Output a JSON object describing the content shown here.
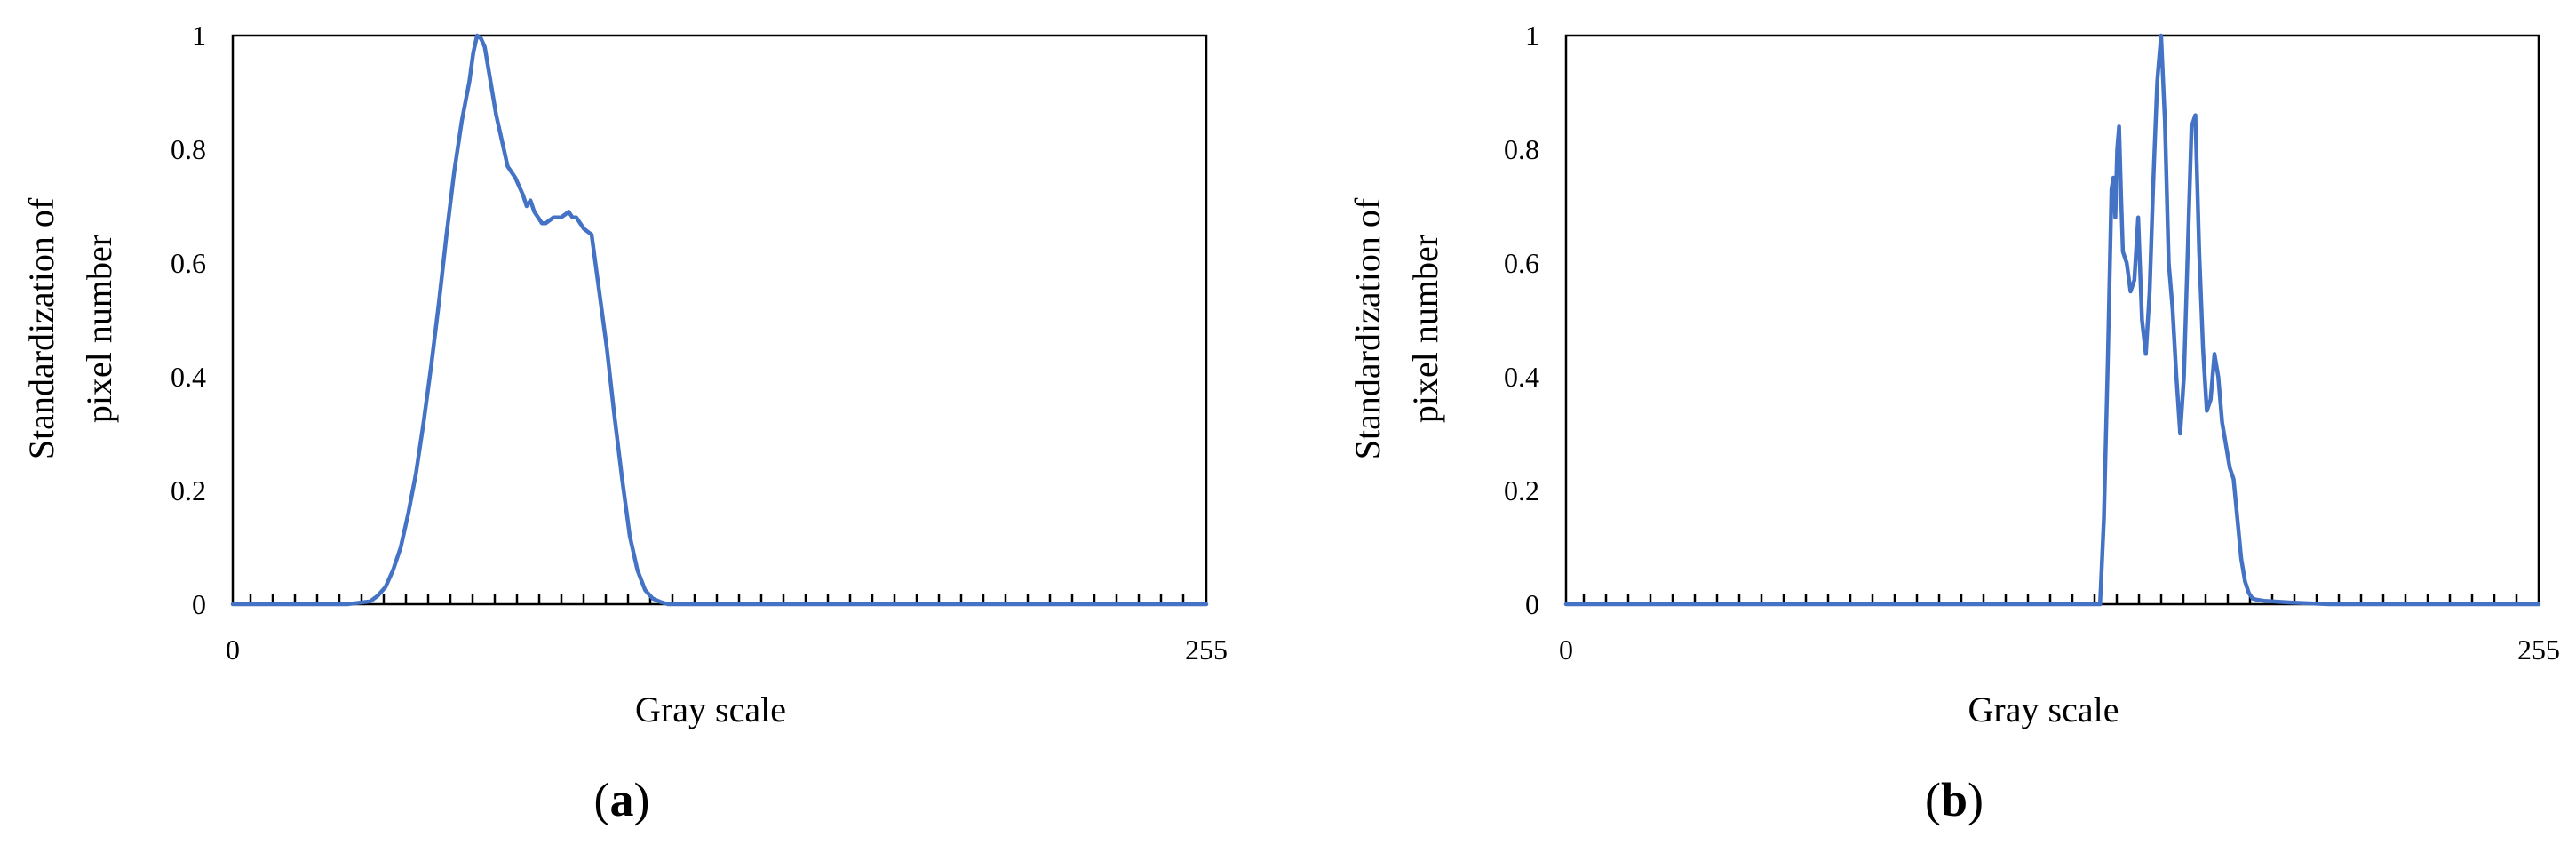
{
  "chart_data": [
    {
      "type": "line",
      "panel_label": "a",
      "xlabel": "Gray scale",
      "ylabel": [
        "Standardization of",
        "pixel number"
      ],
      "xlim": [
        0,
        255
      ],
      "ylim": [
        0,
        1
      ],
      "x_ticks": [
        "0",
        "255"
      ],
      "y_ticks": [
        "0",
        "0.2",
        "0.4",
        "0.6",
        "0.8",
        "1"
      ],
      "grid": false,
      "color": "#4472C4",
      "x": [
        0,
        30,
        36,
        38,
        40,
        42,
        44,
        46,
        48,
        50,
        52,
        54,
        56,
        58,
        60,
        62,
        63,
        64,
        65,
        66,
        67,
        68,
        69,
        70,
        72,
        74,
        76,
        77,
        78,
        79,
        80,
        81,
        82,
        84,
        86,
        88,
        89,
        90,
        92,
        94,
        95,
        96,
        98,
        100,
        102,
        104,
        106,
        108,
        110,
        112,
        114,
        116,
        118,
        255
      ],
      "y": [
        0,
        0,
        0.005,
        0.015,
        0.03,
        0.06,
        0.1,
        0.16,
        0.23,
        0.32,
        0.42,
        0.53,
        0.65,
        0.76,
        0.85,
        0.92,
        0.97,
        1.0,
        0.995,
        0.98,
        0.94,
        0.9,
        0.86,
        0.83,
        0.77,
        0.75,
        0.72,
        0.7,
        0.71,
        0.69,
        0.68,
        0.67,
        0.67,
        0.68,
        0.68,
        0.69,
        0.68,
        0.68,
        0.66,
        0.65,
        0.6,
        0.55,
        0.45,
        0.33,
        0.22,
        0.12,
        0.06,
        0.025,
        0.01,
        0.004,
        0,
        0,
        0,
        0
      ]
    },
    {
      "type": "line",
      "panel_label": "b",
      "xlabel": "Gray scale",
      "ylabel": [
        "Standardization of",
        "pixel number"
      ],
      "xlim": [
        0,
        255
      ],
      "ylim": [
        0,
        1
      ],
      "x_ticks": [
        "0",
        "255"
      ],
      "y_ticks": [
        "0",
        "0.2",
        "0.4",
        "0.6",
        "0.8",
        "1"
      ],
      "grid": false,
      "color": "#4472C4",
      "x": [
        0,
        140,
        141,
        142,
        143,
        143.5,
        144,
        144.5,
        145,
        145.5,
        146,
        147,
        148,
        149,
        150,
        151,
        152,
        153,
        154,
        155,
        156,
        157,
        158,
        159,
        160,
        161,
        162,
        163,
        164,
        165,
        166,
        167,
        168,
        169,
        170,
        171,
        172,
        173,
        174,
        175,
        176,
        177,
        178,
        179,
        180,
        181,
        183,
        185,
        190,
        200,
        255
      ],
      "y": [
        0,
        0,
        0.15,
        0.42,
        0.73,
        0.75,
        0.68,
        0.8,
        0.84,
        0.72,
        0.62,
        0.6,
        0.55,
        0.57,
        0.68,
        0.5,
        0.44,
        0.55,
        0.75,
        0.92,
        1.0,
        0.85,
        0.6,
        0.52,
        0.4,
        0.3,
        0.4,
        0.62,
        0.84,
        0.86,
        0.62,
        0.45,
        0.34,
        0.36,
        0.44,
        0.4,
        0.32,
        0.28,
        0.24,
        0.22,
        0.15,
        0.08,
        0.04,
        0.02,
        0.01,
        0.008,
        0.006,
        0.005,
        0.003,
        0,
        0
      ]
    }
  ]
}
